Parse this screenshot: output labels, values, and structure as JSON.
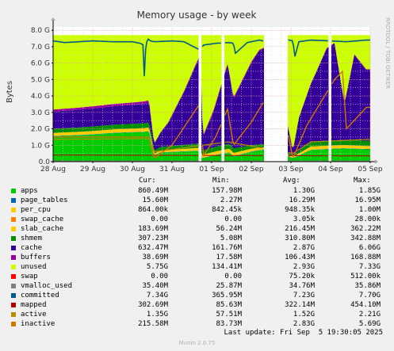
{
  "chart_data": {
    "type": "area",
    "title": "Memory usage - by week",
    "ylabel": "Bytes",
    "side_text": "RRDTOOL / TOBI OETIKER",
    "y_ticks": [
      "0.0",
      "1.0 G",
      "2.0 G",
      "3.0 G",
      "4.0 G",
      "5.0 G",
      "6.0 G",
      "7.0 G",
      "8.0 G"
    ],
    "ylim": [
      0,
      8.2
    ],
    "x_ticks": [
      "28 Aug",
      "29 Aug",
      "30 Aug",
      "31 Aug",
      "01 Sep",
      "02 Sep",
      "03 Sep",
      "04 Sep",
      "05 Sep"
    ],
    "xlim": [
      "28 Aug",
      "05 Sep 19:30"
    ],
    "grid": true,
    "legend_position": "bottom",
    "gaps": [
      [
        "31 Aug 16:00",
        "31 Aug 18:00"
      ],
      [
        "01 Sep 06:00",
        "01 Sep 08:00"
      ],
      [
        "02 Sep 18:00",
        "03 Sep 08:00"
      ],
      [
        "04 Sep 06:00",
        "04 Sep 08:00"
      ]
    ],
    "stack_order": [
      "apps",
      "page_tables",
      "per_cpu",
      "swap_cache",
      "slab_cache",
      "shmem",
      "cache",
      "buffers",
      "unused"
    ],
    "line_series": [
      "swap",
      "vmalloc_used",
      "committed",
      "mapped",
      "active",
      "inactive"
    ],
    "columns": [
      "Cur:",
      "Min:",
      "Avg:",
      "Max:"
    ],
    "series": [
      {
        "name": "apps",
        "color": "#00cc00",
        "cur": "860.49M",
        "min": "157.98M",
        "avg": "1.30G",
        "max": "1.85G"
      },
      {
        "name": "page_tables",
        "color": "#0066b3",
        "cur": "15.60M",
        "min": "2.27M",
        "avg": "16.29M",
        "max": "16.95M"
      },
      {
        "name": "per_cpu",
        "color": "#ffcc00",
        "cur": "864.00k",
        "min": "842.45k",
        "avg": "948.35k",
        "max": "1.00M"
      },
      {
        "name": "swap_cache",
        "color": "#ff8000",
        "cur": "0.00",
        "min": "0.00",
        "avg": "3.05k",
        "max": "28.00k"
      },
      {
        "name": "slab_cache",
        "color": "#ffcc00",
        "cur": "183.69M",
        "min": "56.24M",
        "avg": "216.45M",
        "max": "362.22M"
      },
      {
        "name": "shmem",
        "color": "#008f00",
        "cur": "307.23M",
        "min": "5.08M",
        "avg": "310.80M",
        "max": "342.88M"
      },
      {
        "name": "cache",
        "color": "#330099",
        "cur": "632.47M",
        "min": "161.76M",
        "avg": "2.87G",
        "max": "6.06G"
      },
      {
        "name": "buffers",
        "color": "#990099",
        "cur": "38.69M",
        "min": "17.58M",
        "avg": "106.43M",
        "max": "168.88M"
      },
      {
        "name": "unused",
        "color": "#ccff00",
        "cur": "5.75G",
        "min": "134.41M",
        "avg": "2.93G",
        "max": "7.33G"
      },
      {
        "name": "swap",
        "color": "#ff0000",
        "cur": "0.00",
        "min": "0.00",
        "avg": "75.20k",
        "max": "512.00k"
      },
      {
        "name": "vmalloc_used",
        "color": "#808080",
        "cur": "35.40M",
        "min": "25.87M",
        "avg": "34.76M",
        "max": "35.86M"
      },
      {
        "name": "committed",
        "color": "#005a8c",
        "cur": "7.34G",
        "min": "365.95M",
        "avg": "7.23G",
        "max": "7.70G"
      },
      {
        "name": "mapped",
        "color": "#b30000",
        "cur": "302.69M",
        "min": "85.63M",
        "avg": "322.14M",
        "max": "454.10M"
      },
      {
        "name": "active",
        "color": "#b38f00",
        "cur": "1.35G",
        "min": "57.51M",
        "avg": "1.52G",
        "max": "2.21G"
      },
      {
        "name": "inactive",
        "color": "#cc7a00",
        "cur": "215.58M",
        "min": "83.73M",
        "avg": "2.83G",
        "max": "5.69G"
      }
    ]
  },
  "footer": {
    "last_update": "Last update: Fri Sep  5 19:30:05 2025",
    "version": "Munin 2.0.75"
  }
}
